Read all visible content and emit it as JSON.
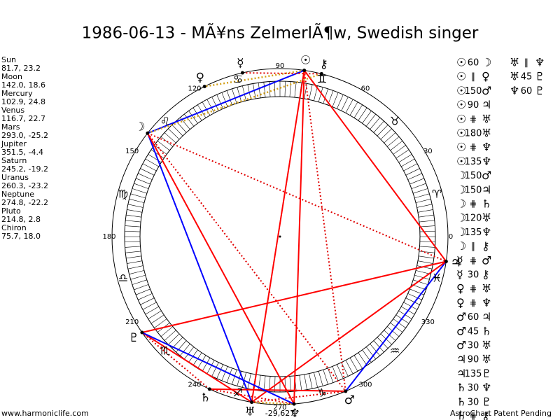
{
  "title": "1986-06-13 - MÃ¥ns ZelmerlÃ¶w, Swedish singer",
  "planets": [
    {
      "name": "Sun",
      "glyph": "☉",
      "coords": "81.7, 23.2"
    },
    {
      "name": "Moon",
      "glyph": "☽",
      "coords": "142.0, 18.6"
    },
    {
      "name": "Mercury",
      "glyph": "☿",
      "coords": "102.9, 24.8"
    },
    {
      "name": "Venus",
      "glyph": "♀",
      "coords": "116.7, 22.7"
    },
    {
      "name": "Mars",
      "glyph": "♂",
      "coords": "293.0, -25.2"
    },
    {
      "name": "Jupiter",
      "glyph": "♃",
      "coords": "351.5, -4.4"
    },
    {
      "name": "Saturn",
      "glyph": "♄",
      "coords": "245.2, -19.2"
    },
    {
      "name": "Uranus",
      "glyph": "♅",
      "coords": "260.3, -23.2"
    },
    {
      "name": "Neptune",
      "glyph": "♆",
      "coords": "274.8, -22.2"
    },
    {
      "name": "Pluto",
      "glyph": "♇",
      "coords": "214.8, 2.8"
    },
    {
      "name": "Chiron",
      "glyph": "⚷",
      "coords": "75.7, 18.0"
    }
  ],
  "signs": [
    "♈",
    "♉",
    "♊",
    "♋",
    "♌",
    "♍",
    "♎",
    "♏",
    "♐",
    "♑",
    "♒",
    "♓"
  ],
  "degree_labels": [
    0,
    30,
    60,
    90,
    120,
    150,
    180,
    210,
    240,
    270,
    300,
    330
  ],
  "aspects": [
    [
      [
        "☉",
        60,
        "☽"
      ],
      [
        "☉",
        "∥",
        "♀"
      ],
      [
        "☉",
        150,
        "♂"
      ],
      [
        "☉",
        90,
        "♃"
      ],
      [
        "☉",
        "⋕",
        "♅"
      ],
      [
        "☉",
        180,
        "♅"
      ],
      [
        "☉",
        "⋕",
        "♆"
      ],
      [
        "☉",
        135,
        "♆"
      ],
      [
        "☽",
        150,
        "♂"
      ],
      [
        "☽",
        150,
        "♃"
      ],
      [
        "☽",
        "⋕",
        "♄"
      ],
      [
        "☽",
        120,
        "♅"
      ],
      [
        "☽",
        135,
        "♆"
      ],
      [
        "☽",
        "∥",
        "⚷"
      ],
      [
        "☿",
        "⋕",
        "♂"
      ],
      [
        "☿",
        30,
        "⚷"
      ],
      [
        "♀",
        "⋕",
        "♅"
      ],
      [
        "♀",
        "⋕",
        "♆"
      ],
      [
        "♂",
        60,
        "♃"
      ],
      [
        "♂",
        45,
        "♄"
      ],
      [
        "♂",
        30,
        "♅"
      ],
      [
        "♃",
        90,
        "♅"
      ],
      [
        "♃",
        135,
        "♇"
      ],
      [
        "♄",
        30,
        "♆"
      ],
      [
        "♄",
        30,
        "♇"
      ],
      [
        "♄",
        "⋕",
        "⚷"
      ]
    ],
    [
      [
        "♅",
        "∥",
        "♆"
      ],
      [
        "♅",
        45,
        "♇"
      ],
      [
        "♆",
        60,
        "♇"
      ]
    ]
  ],
  "center_label": "-29,627",
  "footer": {
    "left": "www.harmoniclife.com",
    "right": "AstroChart Patent Pending"
  }
}
